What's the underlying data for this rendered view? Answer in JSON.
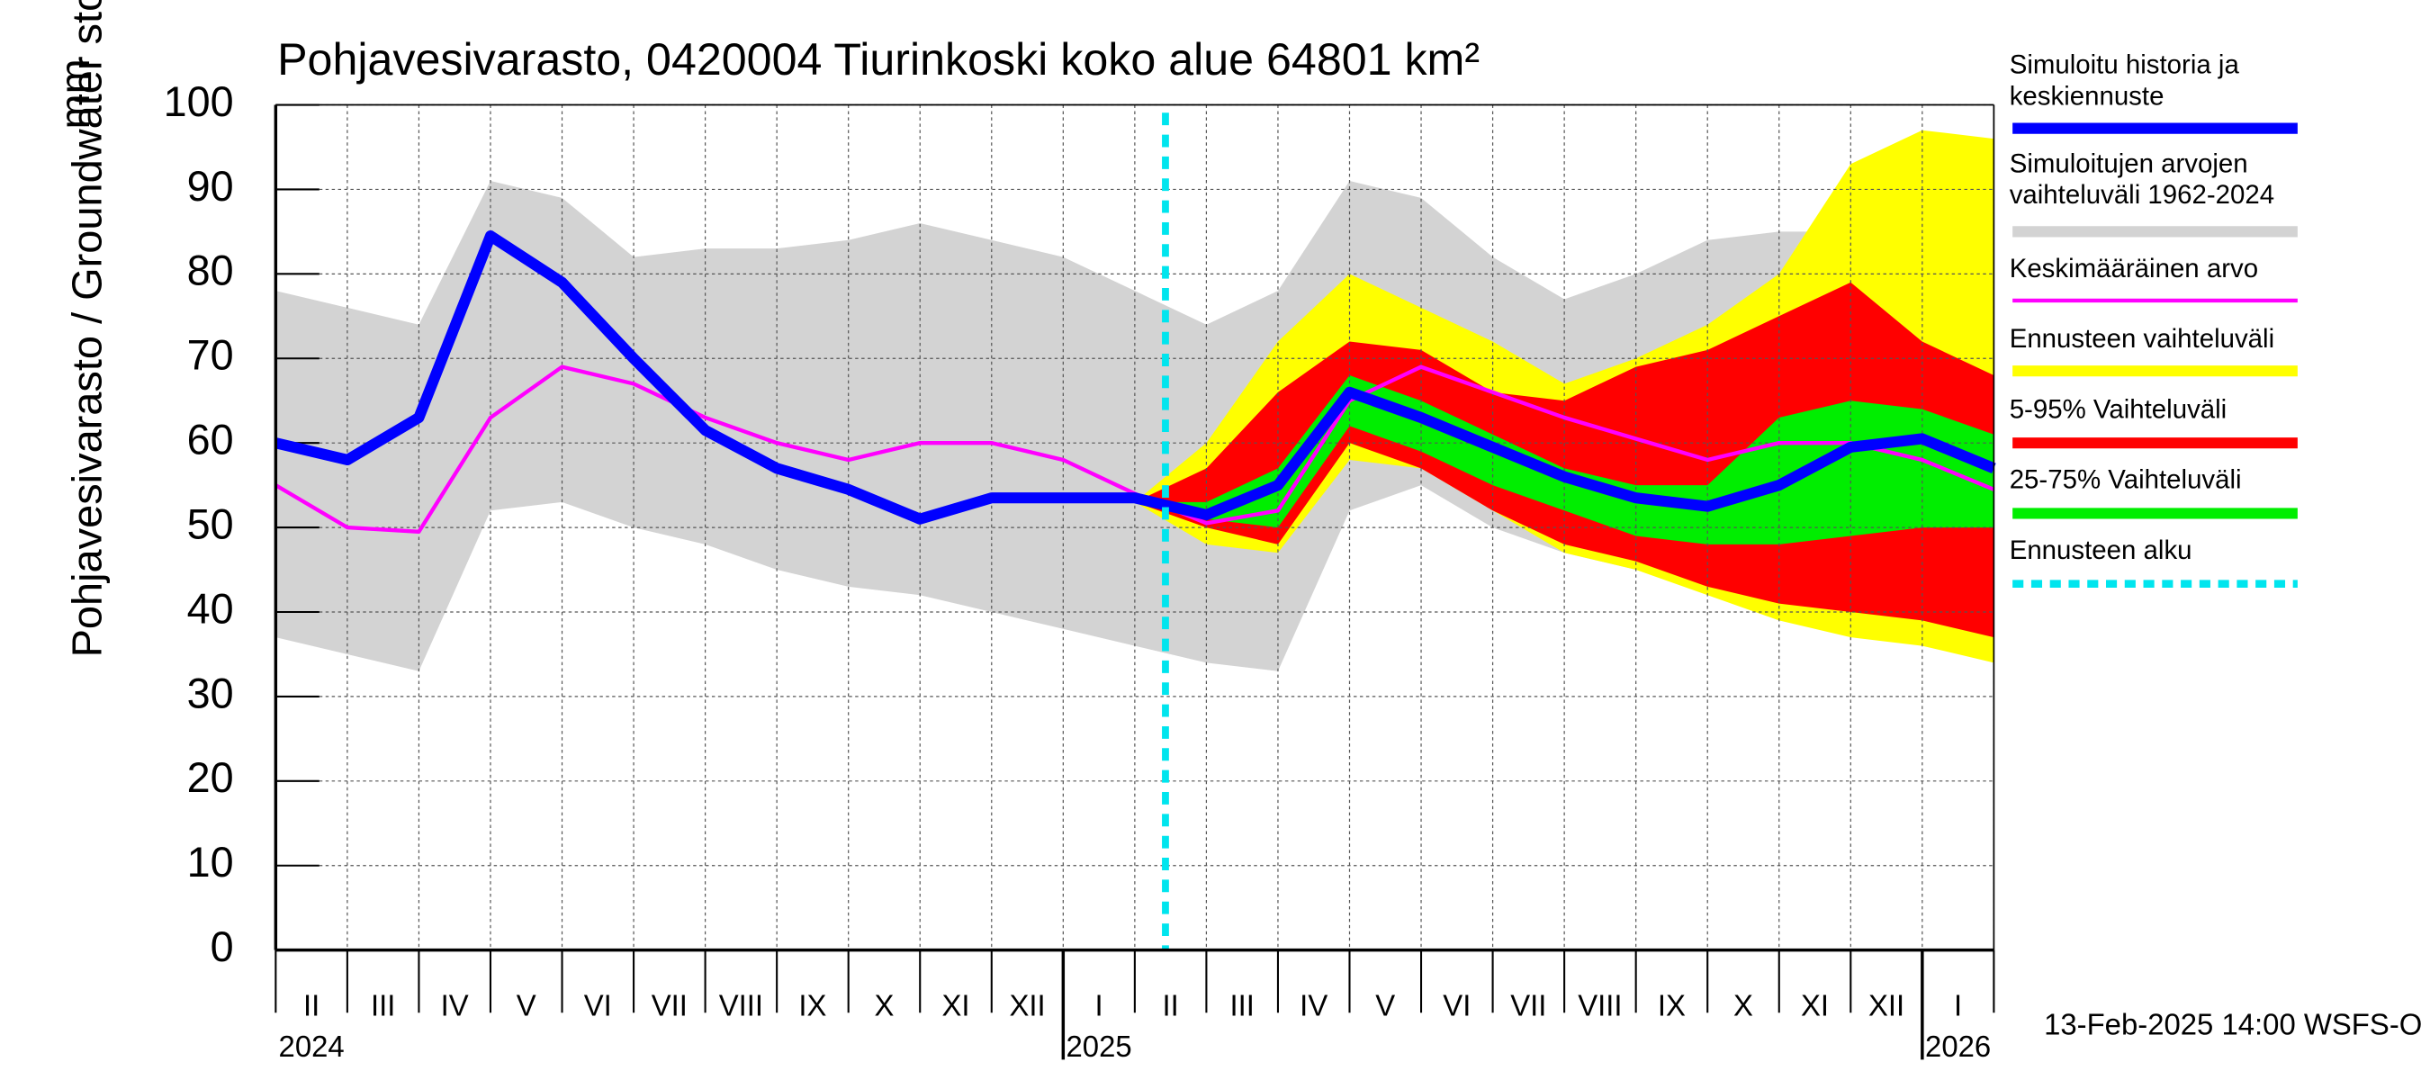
{
  "chart_data": {
    "type": "line",
    "title": "Pohjavesivarasto, 0420004 Tiurinkoski koko alue 64801 km²",
    "ylabel": "Pohjavesivarasto / Groundwater storage",
    "yunit": "mm",
    "footer": "13-Feb-2025 14:00 WSFS-O",
    "ylim": [
      0,
      100
    ],
    "yticks": [
      0,
      10,
      20,
      30,
      40,
      50,
      60,
      70,
      80,
      90,
      100
    ],
    "grid": true,
    "xlim": [
      "2024-02",
      "2026-02"
    ],
    "x": [
      "2024-02",
      "2024-03",
      "2024-04",
      "2024-05",
      "2024-06",
      "2024-07",
      "2024-08",
      "2024-09",
      "2024-10",
      "2024-11",
      "2024-12",
      "2025-01",
      "2025-02",
      "2025-03",
      "2025-04",
      "2025-05",
      "2025-06",
      "2025-07",
      "2025-08",
      "2025-09",
      "2025-10",
      "2025-11",
      "2025-12",
      "2026-01",
      "2026-02"
    ],
    "month_labels": [
      "II",
      "III",
      "IV",
      "V",
      "VI",
      "VII",
      "VIII",
      "IX",
      "X",
      "XI",
      "XII",
      "I",
      "II",
      "III",
      "IV",
      "V",
      "VI",
      "VII",
      "VIII",
      "IX",
      "X",
      "XI",
      "XII",
      "I"
    ],
    "year_labels": [
      {
        "value": "2024-02",
        "label": "2024"
      },
      {
        "value": "2025-01",
        "label": "2025"
      },
      {
        "value": "2026-01",
        "label": "2026"
      }
    ],
    "bands": [
      {
        "name": "Simuloitujen arvojen vaihteluväli 1962-2024",
        "color": "#d3d3d3",
        "upper": [
          78,
          76,
          74,
          91,
          89,
          82,
          83,
          83,
          84,
          86,
          84,
          82,
          78,
          74,
          78,
          91,
          89,
          82,
          77,
          80,
          84,
          85,
          85,
          80,
          77
        ],
        "lower": [
          37,
          35,
          33,
          52,
          53,
          50,
          48,
          45,
          43,
          42,
          40,
          38,
          36,
          34,
          33,
          52,
          55,
          50,
          47,
          45,
          43,
          42,
          40,
          38,
          36
        ]
      },
      {
        "name": "Ennusteen vaihteluväli",
        "color": "#ffff00",
        "upper": [
          null,
          null,
          null,
          null,
          null,
          null,
          null,
          null,
          null,
          null,
          null,
          null,
          53,
          60,
          72,
          80,
          76,
          72,
          67,
          70,
          74,
          80,
          93,
          97,
          96
        ],
        "lower": [
          null,
          null,
          null,
          null,
          null,
          null,
          null,
          null,
          null,
          null,
          null,
          null,
          53,
          48,
          47,
          58,
          57,
          52,
          47,
          45,
          42,
          39,
          37,
          36,
          34
        ]
      },
      {
        "name": "5-95% Vaihteluväli",
        "color": "#ff0000",
        "upper": [
          null,
          null,
          null,
          null,
          null,
          null,
          null,
          null,
          null,
          null,
          null,
          null,
          53,
          57,
          66,
          72,
          71,
          66,
          65,
          69,
          71,
          75,
          79,
          72,
          68
        ],
        "lower": [
          null,
          null,
          null,
          null,
          null,
          null,
          null,
          null,
          null,
          null,
          null,
          null,
          53,
          50,
          48,
          60,
          57,
          52,
          48,
          46,
          43,
          41,
          40,
          39,
          37
        ]
      },
      {
        "name": "25-75% Vaihteluväli",
        "color": "#00ee00",
        "upper": [
          null,
          null,
          null,
          null,
          null,
          null,
          null,
          null,
          null,
          null,
          null,
          null,
          53,
          53,
          57,
          68,
          65,
          61,
          57,
          55,
          55,
          63,
          65,
          64,
          61
        ],
        "lower": [
          null,
          null,
          null,
          null,
          null,
          null,
          null,
          null,
          null,
          null,
          null,
          null,
          53,
          51,
          50,
          62,
          59,
          55,
          52,
          49,
          48,
          48,
          49,
          50,
          50
        ]
      }
    ],
    "series": [
      {
        "name": "Keskimääräinen arvo",
        "color": "#ff00ff",
        "values": [
          55,
          50,
          49.5,
          63,
          69,
          67,
          63,
          60,
          58,
          60,
          60,
          58,
          54,
          50.5,
          52,
          65,
          69,
          66,
          63,
          60.5,
          58,
          60,
          60,
          58,
          54.5
        ]
      },
      {
        "name": "Simuloitu historia ja keskiennuste",
        "color": "#0000ff",
        "values": [
          60,
          58,
          63,
          84.5,
          79,
          70,
          61.5,
          57,
          54.5,
          51,
          53.5,
          53.5,
          53.5,
          51.5,
          55,
          66,
          63,
          59.5,
          56,
          53.5,
          52.5,
          55,
          59.5,
          60.5,
          57
        ]
      }
    ],
    "forecast_start": {
      "name": "Ennusteen alku",
      "color": "#00e5ee",
      "date": "2025-02-13"
    }
  }
}
